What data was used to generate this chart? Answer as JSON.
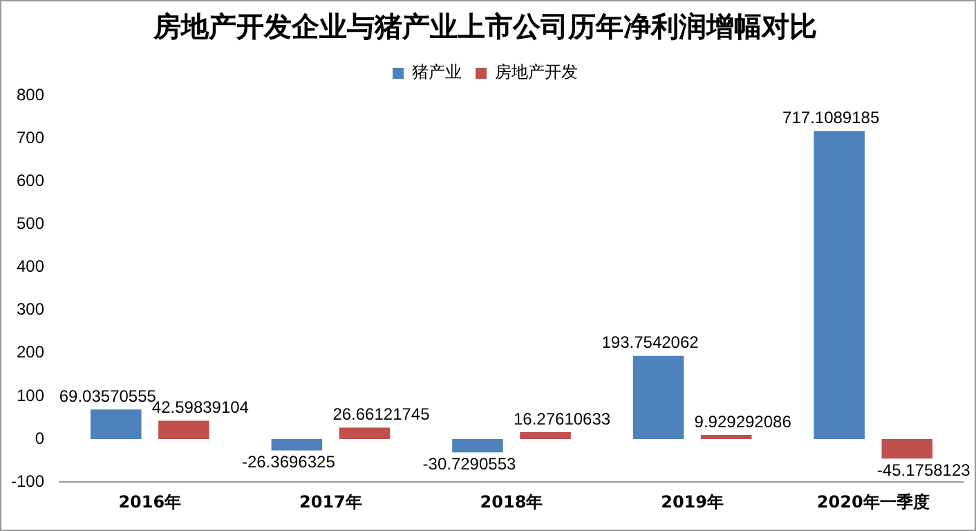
{
  "chart_data": {
    "type": "bar",
    "title": "房地产开发企业与猪产业上市公司历年净利润增幅对比",
    "categories": [
      "2016年",
      "2017年",
      "2018年",
      "2019年",
      "2020年一季度"
    ],
    "series": [
      {
        "name": "猪产业",
        "color": "#4f81bd",
        "values": [
          69.03570555,
          -26.3696325,
          -30.7290553,
          193.7542062,
          717.1089185
        ]
      },
      {
        "name": "房地产开发",
        "color": "#c0504d",
        "values": [
          42.59839104,
          26.66121745,
          16.27610633,
          9.929292086,
          -45.1758123
        ]
      }
    ],
    "ylim": [
      -100,
      800
    ],
    "yticks": [
      -100,
      0,
      100,
      200,
      300,
      400,
      500,
      600,
      700,
      800
    ],
    "grid": false,
    "legend": "top",
    "data_labels": true
  }
}
